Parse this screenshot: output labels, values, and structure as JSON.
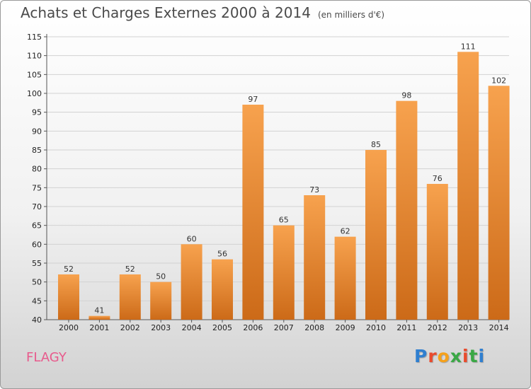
{
  "title": {
    "main": "Achats et Charges Externes 2000 à 2014",
    "unit": "(en milliers d'€)"
  },
  "town": "FLAGY",
  "logo": {
    "letters": [
      "P",
      "r",
      "o",
      "x",
      "i",
      "t",
      "i"
    ],
    "colors": [
      "#2f7fd0",
      "#e94b2d",
      "#f6a11b",
      "#3aa845",
      "#e94b2d",
      "#3aa845",
      "#2f7fd0"
    ]
  },
  "colors": {
    "bar_light": "#f7a24e",
    "bar_dark": "#cc6a18",
    "grid": "#d2d2d2"
  },
  "chart_data": {
    "type": "bar",
    "categories": [
      "2000",
      "2001",
      "2002",
      "2003",
      "2004",
      "2005",
      "2006",
      "2007",
      "2008",
      "2009",
      "2010",
      "2011",
      "2012",
      "2013",
      "2014"
    ],
    "values": [
      52,
      41,
      52,
      50,
      60,
      56,
      97,
      65,
      73,
      62,
      85,
      98,
      76,
      111,
      102
    ],
    "ylim": [
      40,
      115
    ],
    "yticks": [
      40,
      45,
      50,
      55,
      60,
      65,
      70,
      75,
      80,
      85,
      90,
      95,
      100,
      105,
      110,
      115
    ],
    "grid": true
  }
}
